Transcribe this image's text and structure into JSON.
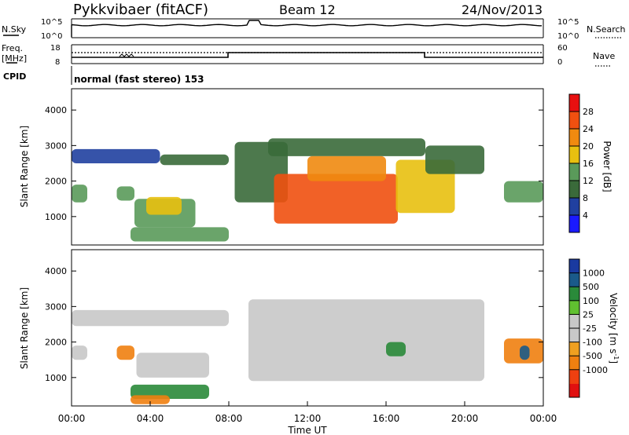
{
  "header": {
    "station": "Pykkvibaer (fitACF)",
    "beam": "Beam 12",
    "date": "24/Nov/2013"
  },
  "strips": {
    "nsky_label": "N.Sky",
    "nsky_ticks": [
      "10^5",
      "10^0"
    ],
    "nsearch_label": "N.Search",
    "nsearch_ticks": [
      "10^5",
      "10^0"
    ],
    "freq_label_line1": "Freq.",
    "freq_label_line2": "[MHz]",
    "freq_ticks": [
      "18",
      "8"
    ],
    "nave_label": "Nave",
    "nave_ticks": [
      "60",
      "0"
    ],
    "cpid_label": "CPID",
    "cpid_text": "normal (fast stereo) 153"
  },
  "colors": {
    "power_scale": [
      "#1a1aff",
      "#2040a0",
      "#3a6a3a",
      "#5a9a5a",
      "#e8c010",
      "#f08a10",
      "#f05010",
      "#e81010"
    ],
    "velocity_scale": [
      "#e01010",
      "#ee4010",
      "#f08010",
      "#f0a020",
      "#c8c8c8",
      "#c8c8c8",
      "#60c030",
      "#2a8a3a",
      "#1a5a8a",
      "#1a3aa0"
    ]
  },
  "chart_data": [
    {
      "type": "heatmap",
      "panel": "power",
      "xlabel": "",
      "ylabel": "Slant Range [km]",
      "ylim": [
        200,
        4600
      ],
      "y_ticks": [
        "1000",
        "2000",
        "3000",
        "4000"
      ],
      "colorbar_label": "Power [dB]",
      "colorbar_ticks": [
        "4",
        "8",
        "12",
        "16",
        "20",
        "24",
        "28"
      ],
      "colorbar_range": [
        0,
        32
      ],
      "regions": [
        {
          "x": [
            0.0,
            4.5
          ],
          "y": [
            2500,
            2900
          ],
          "value": 6
        },
        {
          "x": [
            4.5,
            8.0
          ],
          "y": [
            2450,
            2750
          ],
          "value": 8
        },
        {
          "x": [
            0.0,
            0.8
          ],
          "y": [
            1400,
            1900
          ],
          "value": 12
        },
        {
          "x": [
            2.3,
            3.2
          ],
          "y": [
            1450,
            1850
          ],
          "value": 14
        },
        {
          "x": [
            3.2,
            6.3
          ],
          "y": [
            700,
            1500
          ],
          "value": 12
        },
        {
          "x": [
            3.8,
            5.6
          ],
          "y": [
            1050,
            1550
          ],
          "value": 16
        },
        {
          "x": [
            3.0,
            8.0
          ],
          "y": [
            300,
            700
          ],
          "value": 14
        },
        {
          "x": [
            8.3,
            11.0
          ],
          "y": [
            1400,
            3100
          ],
          "value": 10
        },
        {
          "x": [
            10.0,
            18.0
          ],
          "y": [
            2700,
            3200
          ],
          "value": 8
        },
        {
          "x": [
            10.3,
            16.6
          ],
          "y": [
            800,
            2200
          ],
          "value": 26
        },
        {
          "x": [
            12.0,
            16.0
          ],
          "y": [
            2000,
            2700
          ],
          "value": 22
        },
        {
          "x": [
            16.5,
            19.5
          ],
          "y": [
            1100,
            2600
          ],
          "value": 16
        },
        {
          "x": [
            18.0,
            21.0
          ],
          "y": [
            2200,
            3000
          ],
          "value": 8
        },
        {
          "x": [
            22.0,
            24.0
          ],
          "y": [
            1400,
            2000
          ],
          "value": 12
        }
      ]
    },
    {
      "type": "heatmap",
      "panel": "velocity",
      "xlabel": "Time UT",
      "ylabel": "Slant Range [km]",
      "ylim": [
        200,
        4600
      ],
      "y_ticks": [
        "1000",
        "2000",
        "3000",
        "4000"
      ],
      "x_ticks": [
        "00:00",
        "04:00",
        "08:00",
        "12:00",
        "16:00",
        "20:00",
        "00:00"
      ],
      "xlim": [
        0,
        24
      ],
      "colorbar_label": "Velocity [m s",
      "colorbar_label_sup": "-1",
      "colorbar_label_end": "]",
      "colorbar_ticks": [
        "1000",
        "500",
        "100",
        "25",
        "-25",
        "-100",
        "-500",
        "-1000"
      ],
      "regions": [
        {
          "x": [
            0.0,
            0.8
          ],
          "y": [
            1500,
            1900
          ],
          "value": -10
        },
        {
          "x": [
            2.3,
            3.2
          ],
          "y": [
            1500,
            1900
          ],
          "value": -300
        },
        {
          "x": [
            3.3,
            7.0
          ],
          "y": [
            1000,
            1700
          ],
          "value": -5
        },
        {
          "x": [
            3.0,
            7.0
          ],
          "y": [
            400,
            800
          ],
          "value": 150
        },
        {
          "x": [
            3.0,
            5.0
          ],
          "y": [
            250,
            500
          ],
          "value": -200
        },
        {
          "x": [
            0.0,
            8.0
          ],
          "y": [
            2450,
            2900
          ],
          "value": 10
        },
        {
          "x": [
            9.0,
            21.0
          ],
          "y": [
            900,
            3200
          ],
          "value": 0
        },
        {
          "x": [
            16.0,
            17.0
          ],
          "y": [
            1600,
            2000
          ],
          "value": 200
        },
        {
          "x": [
            22.0,
            24.0
          ],
          "y": [
            1400,
            2100
          ],
          "value": -300
        },
        {
          "x": [
            22.8,
            23.3
          ],
          "y": [
            1500,
            1900
          ],
          "value": 800
        }
      ]
    }
  ]
}
